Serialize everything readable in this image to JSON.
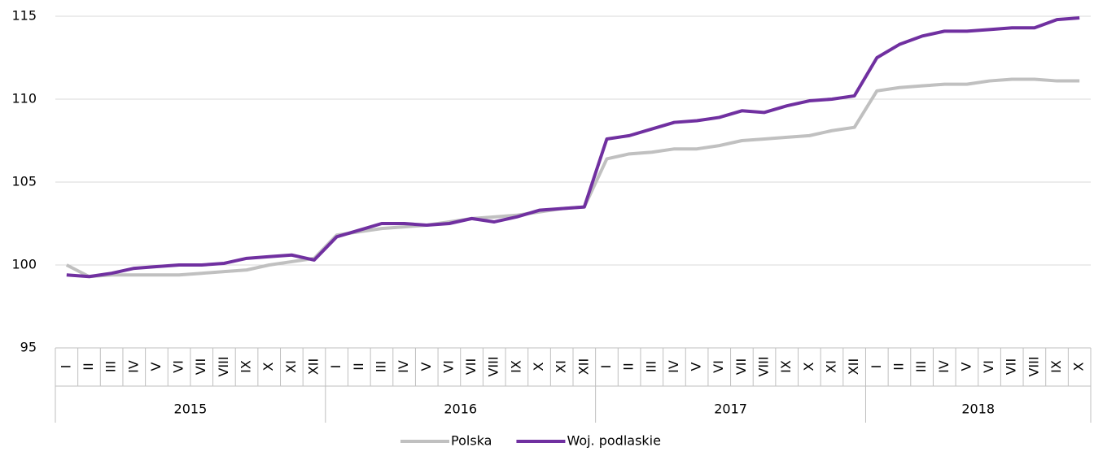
{
  "chart_data": {
    "type": "line",
    "groups": [
      {
        "label": "2015",
        "categories": [
          "I",
          "II",
          "III",
          "IV",
          "V",
          "VI",
          "VII",
          "VIII",
          "IX",
          "X",
          "XI",
          "XII"
        ]
      },
      {
        "label": "2016",
        "categories": [
          "I",
          "II",
          "III",
          "IV",
          "V",
          "VI",
          "VII",
          "VIII",
          "IX",
          "X",
          "XI",
          "XII"
        ]
      },
      {
        "label": "2017",
        "categories": [
          "I",
          "II",
          "III",
          "IV",
          "V",
          "VI",
          "VII",
          "VIII",
          "IX",
          "X",
          "XI",
          "XII"
        ]
      },
      {
        "label": "2018",
        "categories": [
          "I",
          "II",
          "III",
          "IV",
          "V",
          "VI",
          "VII",
          "VIII",
          "IX",
          "X"
        ]
      }
    ],
    "series": [
      {
        "name": "Polska",
        "color": "#c0c0c0",
        "values": [
          100.0,
          99.3,
          99.4,
          99.4,
          99.4,
          99.4,
          99.5,
          99.6,
          99.7,
          100.0,
          100.2,
          100.4,
          101.8,
          102.0,
          102.2,
          102.3,
          102.4,
          102.6,
          102.8,
          102.9,
          103.0,
          103.2,
          103.4,
          103.5,
          106.4,
          106.7,
          106.8,
          107.0,
          107.0,
          107.2,
          107.5,
          107.6,
          107.7,
          107.8,
          108.1,
          108.3,
          110.5,
          110.7,
          110.8,
          110.9,
          110.9,
          111.1,
          111.2,
          111.2,
          111.1,
          111.1
        ]
      },
      {
        "name": "Woj. podlaskie",
        "color": "#7030a0",
        "values": [
          99.4,
          99.3,
          99.5,
          99.8,
          99.9,
          100.0,
          100.0,
          100.1,
          100.4,
          100.5,
          100.6,
          100.3,
          101.7,
          102.1,
          102.5,
          102.5,
          102.4,
          102.5,
          102.8,
          102.6,
          102.9,
          103.3,
          103.4,
          103.5,
          107.6,
          107.8,
          108.2,
          108.6,
          108.7,
          108.9,
          109.3,
          109.2,
          109.6,
          109.9,
          110.0,
          110.2,
          112.5,
          113.3,
          113.8,
          114.1,
          114.1,
          114.2,
          114.3,
          114.3,
          114.8,
          114.9
        ]
      }
    ],
    "ylim": [
      95,
      115
    ],
    "yticks": [
      95,
      100,
      105,
      110,
      115
    ],
    "grid": true,
    "legend": "bottom"
  }
}
